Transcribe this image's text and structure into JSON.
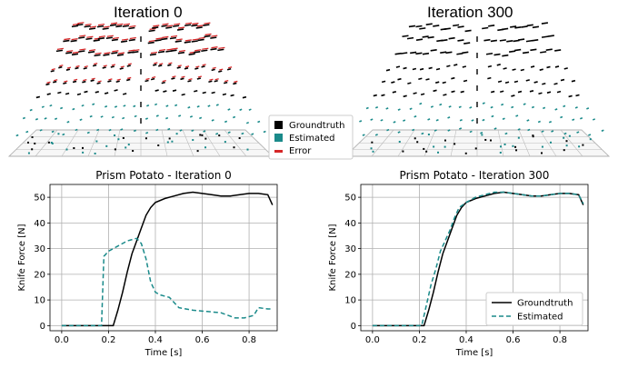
{
  "panels": {
    "left_title": "Iteration 0",
    "right_title": "Iteration 300"
  },
  "colors": {
    "groundtruth": "#000000",
    "estimated": "#1a8a8a",
    "error": "#d62728",
    "grid": "#b0b0b0"
  },
  "legend3d": [
    {
      "label": "Groundtruth",
      "swatch": "groundtruth"
    },
    {
      "label": "Estimated",
      "swatch": "estimated"
    },
    {
      "label": "Error",
      "swatch": "error"
    }
  ],
  "chart_data": [
    {
      "type": "line",
      "title": "Prism Potato - Iteration 0",
      "xlabel": "Time [s]",
      "ylabel": "Knife Force [N]",
      "xlim": [
        -0.05,
        0.92
      ],
      "ylim": [
        -2,
        55
      ],
      "xticks": [
        "0.0",
        "0.2",
        "0.4",
        "0.6",
        "0.8"
      ],
      "yticks": [
        "0",
        "10",
        "20",
        "30",
        "40",
        "50"
      ],
      "grid": true,
      "legend": null,
      "series": [
        {
          "name": "Groundtruth",
          "style": "solid",
          "color": "groundtruth",
          "x": [
            0.0,
            0.1,
            0.22,
            0.24,
            0.26,
            0.28,
            0.3,
            0.32,
            0.34,
            0.36,
            0.38,
            0.4,
            0.44,
            0.48,
            0.52,
            0.56,
            0.6,
            0.64,
            0.68,
            0.72,
            0.76,
            0.8,
            0.84,
            0.88,
            0.9
          ],
          "y": [
            0,
            0,
            0,
            6,
            13,
            21,
            28,
            33,
            38,
            43,
            46,
            48,
            49.5,
            50.5,
            51.5,
            52,
            51.5,
            51,
            50.5,
            50.5,
            51,
            51.5,
            51.5,
            51,
            47
          ]
        },
        {
          "name": "Estimated",
          "style": "dashed",
          "color": "estimated",
          "x": [
            0.0,
            0.1,
            0.17,
            0.18,
            0.2,
            0.24,
            0.28,
            0.32,
            0.34,
            0.36,
            0.38,
            0.4,
            0.42,
            0.46,
            0.5,
            0.56,
            0.62,
            0.68,
            0.74,
            0.78,
            0.82,
            0.84,
            0.88,
            0.9
          ],
          "y": [
            0,
            0,
            0,
            27,
            29,
            31,
            33,
            34,
            32,
            26,
            17,
            13,
            12,
            11,
            7,
            6,
            5.5,
            5,
            3,
            3,
            4,
            7,
            6.5,
            6.5
          ]
        }
      ]
    },
    {
      "type": "line",
      "title": "Prism Potato - Iteration 300",
      "xlabel": "Time [s]",
      "ylabel": "Knife Force [N]",
      "xlim": [
        -0.05,
        0.92
      ],
      "ylim": [
        -2,
        55
      ],
      "xticks": [
        "0.0",
        "0.2",
        "0.4",
        "0.6",
        "0.8"
      ],
      "yticks": [
        "0",
        "10",
        "20",
        "30",
        "40",
        "50"
      ],
      "grid": true,
      "legend": "bottom-right",
      "series": [
        {
          "name": "Groundtruth",
          "style": "solid",
          "color": "groundtruth",
          "x": [
            0.0,
            0.1,
            0.22,
            0.24,
            0.26,
            0.28,
            0.3,
            0.32,
            0.34,
            0.36,
            0.38,
            0.4,
            0.44,
            0.48,
            0.52,
            0.56,
            0.6,
            0.64,
            0.68,
            0.72,
            0.76,
            0.8,
            0.84,
            0.88,
            0.9
          ],
          "y": [
            0,
            0,
            0,
            6,
            13,
            21,
            28,
            33,
            38,
            43,
            46,
            48,
            49.5,
            50.5,
            51.5,
            52,
            51.5,
            51,
            50.5,
            50.5,
            51,
            51.5,
            51.5,
            51,
            47
          ]
        },
        {
          "name": "Estimated",
          "style": "dashed",
          "color": "estimated",
          "x": [
            0.0,
            0.1,
            0.21,
            0.23,
            0.25,
            0.27,
            0.29,
            0.31,
            0.33,
            0.35,
            0.37,
            0.4,
            0.44,
            0.48,
            0.52,
            0.56,
            0.6,
            0.64,
            0.68,
            0.72,
            0.76,
            0.8,
            0.84,
            0.88,
            0.9
          ],
          "y": [
            0,
            0,
            0,
            8,
            16,
            22,
            29,
            33,
            37,
            42,
            46,
            48,
            50,
            51,
            52,
            52,
            51.5,
            51,
            50.5,
            50.5,
            51,
            51.5,
            51.5,
            51,
            47.5
          ]
        }
      ]
    }
  ]
}
